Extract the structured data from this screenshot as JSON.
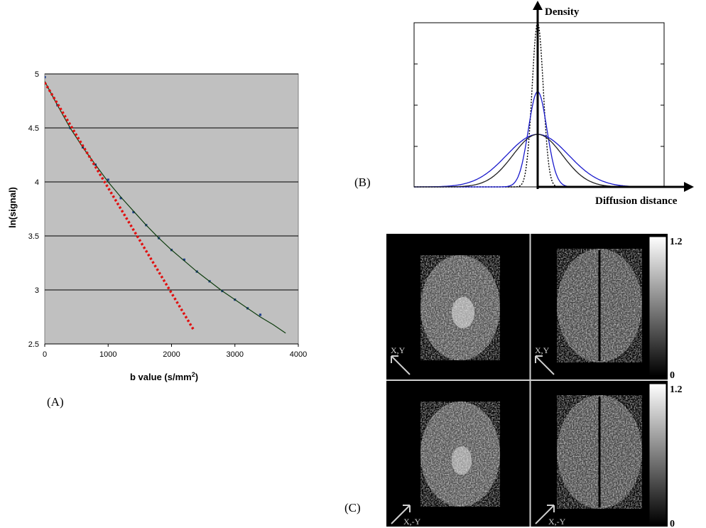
{
  "panels": {
    "a": {
      "label": "(A)",
      "xlabel_main": "b value (s/mm",
      "xlabel_sup": "2",
      "xlabel_end": ")",
      "ylabel": "ln(signal)",
      "x_ticks": [
        "0",
        "1000",
        "2000",
        "3000",
        "4000"
      ],
      "y_ticks": [
        "2.5",
        "3",
        "3.5",
        "4",
        "4.5",
        "5"
      ]
    },
    "b": {
      "label": "(B)",
      "ylabel": "Density",
      "xlabel": "Diffusion distance"
    },
    "c": {
      "label": "(C)",
      "colorbar_max": "1.2",
      "colorbar_min": "0",
      "tiles": [
        {
          "dir": "X,Y"
        },
        {
          "dir": "X,Y"
        },
        {
          "dir": "X,-Y"
        },
        {
          "dir": "X,-Y"
        }
      ]
    }
  },
  "chart_data": [
    {
      "type": "scatter",
      "panel": "A",
      "xlabel": "b value (s/mm2)",
      "ylabel": "ln(signal)",
      "xlim": [
        0,
        4000
      ],
      "ylim": [
        2.5,
        5
      ],
      "grid": true,
      "background": "#c0c0c0",
      "series": [
        {
          "kind": "points",
          "color": "#1f3f8f",
          "x": [
            0,
            200,
            400,
            600,
            800,
            1000,
            1200,
            1400,
            1600,
            1800,
            2000,
            2200,
            2400,
            2600,
            2800,
            3000,
            3200,
            3400
          ],
          "y": [
            4.97,
            4.71,
            4.5,
            4.32,
            4.16,
            4.02,
            3.85,
            3.72,
            3.6,
            3.48,
            3.37,
            3.28,
            3.17,
            3.08,
            2.99,
            2.91,
            2.83,
            2.77
          ]
        },
        {
          "kind": "line",
          "color": "#0f3d0f",
          "x": [
            0,
            200,
            400,
            600,
            800,
            1000,
            1200,
            1400,
            1600,
            1800,
            2000,
            2200,
            2400,
            2600,
            2800,
            3000,
            3200,
            3400,
            3600,
            3800
          ],
          "y": [
            4.93,
            4.71,
            4.5,
            4.32,
            4.16,
            4.0,
            3.86,
            3.73,
            3.6,
            3.48,
            3.37,
            3.27,
            3.17,
            3.08,
            2.99,
            2.91,
            2.83,
            2.75,
            2.68,
            2.6
          ]
        },
        {
          "kind": "dotted-line",
          "color": "#e01010",
          "x": [
            0,
            2350
          ],
          "y": [
            4.92,
            2.63
          ]
        }
      ]
    },
    {
      "type": "line",
      "panel": "B",
      "xlabel": "Diffusion distance",
      "ylabel": "Density",
      "x_range": [
        -1,
        1
      ],
      "y_range": [
        0,
        1
      ],
      "series": [
        {
          "style": "dotted",
          "color": "#000000",
          "peak": 1.0,
          "width": 0.045
        },
        {
          "style": "solid",
          "color": "#1a1acc",
          "peak": 0.58,
          "width": 0.075
        },
        {
          "style": "solid",
          "color": "#1a1acc",
          "peak": 0.32,
          "width": 0.25
        },
        {
          "style": "solid",
          "color": "#222222",
          "peak": 0.32,
          "width": 0.2
        }
      ]
    }
  ]
}
